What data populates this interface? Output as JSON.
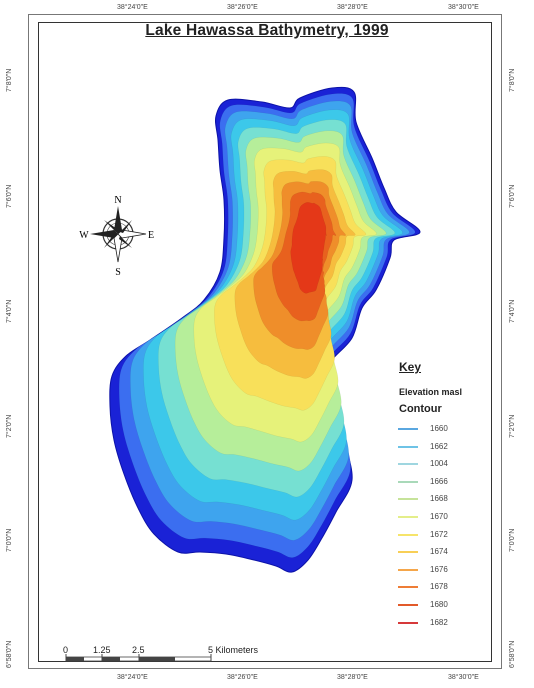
{
  "map": {
    "title": "Lake Hawassa Bathymetry, 1999",
    "top_ticks": [
      "38°24'0\"E",
      "38°26'0\"E",
      "38°28'0\"E",
      "38°30'0\"E"
    ],
    "bottom_ticks": [
      "38°24'0\"E",
      "38°26'0\"E",
      "38°28'0\"E",
      "38°30'0\"E"
    ],
    "left_ticks": [
      "7°8'0\"N",
      "7°6'0\"N",
      "7°4'0\"N",
      "7°2'0\"N",
      "7°0'0\"N",
      "6°58'0\"N"
    ],
    "right_ticks": [
      "7°8'0\"N",
      "7°6'0\"N",
      "7°4'0\"N",
      "7°2'0\"N",
      "7°0'0\"N",
      "6°58'0\"N"
    ]
  },
  "compass": {
    "n": "N",
    "s": "S",
    "e": "E",
    "w": "W"
  },
  "key": {
    "heading": "Key",
    "subheading": "Elevation masl",
    "contour_label": "Contour",
    "entries": [
      {
        "label": "1660",
        "color": "#5aa7e0"
      },
      {
        "label": "1662",
        "color": "#6ec3e6"
      },
      {
        "label": "1004",
        "color": "#9fd6e0"
      },
      {
        "label": "1666",
        "color": "#a9d9b9"
      },
      {
        "label": "1668",
        "color": "#c6e39a"
      },
      {
        "label": "1670",
        "color": "#e4ee8a"
      },
      {
        "label": "1672",
        "color": "#f6e46a"
      },
      {
        "label": "1674",
        "color": "#f8cf56"
      },
      {
        "label": "1676",
        "color": "#f5a64a"
      },
      {
        "label": "1678",
        "color": "#ee7d36"
      },
      {
        "label": "1680",
        "color": "#e25a2a"
      },
      {
        "label": "1682",
        "color": "#d6393a"
      }
    ]
  },
  "fill_colors": [
    "#1a22d6",
    "#3b6ef0",
    "#3ea4ee",
    "#3cc8ea",
    "#76e0d2",
    "#b6ee9a",
    "#e6f27a",
    "#f8e05a",
    "#f6bd3e",
    "#ef8e2a",
    "#e8611e",
    "#e43818"
  ],
  "scale": {
    "labels": [
      "0",
      "1.25",
      "2.5",
      "5 Kilometers"
    ]
  }
}
